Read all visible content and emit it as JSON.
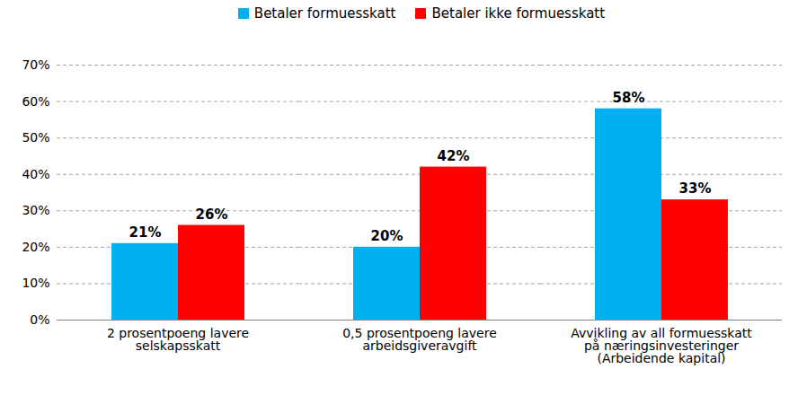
{
  "chart_data": {
    "type": "bar",
    "categories": [
      "2 prosentpoeng lavere\nselskapsskatt",
      "0,5 prosentpoeng lavere\narbeidsgiveravgift",
      "Avvikling av all formuesskatt\npå næringsinvesteringer\n(Arbeidende kapital)"
    ],
    "series": [
      {
        "name": "Betaler formuesskatt",
        "color": "#00b0f0",
        "values": [
          21,
          20,
          58
        ],
        "value_labels": [
          "21%",
          "20%",
          "58%"
        ]
      },
      {
        "name": "Betaler ikke formuesskatt",
        "color": "#ff0000",
        "values": [
          26,
          42,
          33
        ],
        "value_labels": [
          "26%",
          "42%",
          "33%"
        ]
      }
    ],
    "ylim": [
      0,
      70
    ],
    "yticks": [
      {
        "value": 0,
        "label": "0%"
      },
      {
        "value": 10,
        "label": "10%"
      },
      {
        "value": 20,
        "label": "20%"
      },
      {
        "value": 30,
        "label": "30%"
      },
      {
        "value": 40,
        "label": "40%"
      },
      {
        "value": 50,
        "label": "50%"
      },
      {
        "value": 60,
        "label": "60%"
      },
      {
        "value": 70,
        "label": "70%"
      }
    ],
    "grid": true,
    "legend": "top",
    "data_labels": true
  }
}
